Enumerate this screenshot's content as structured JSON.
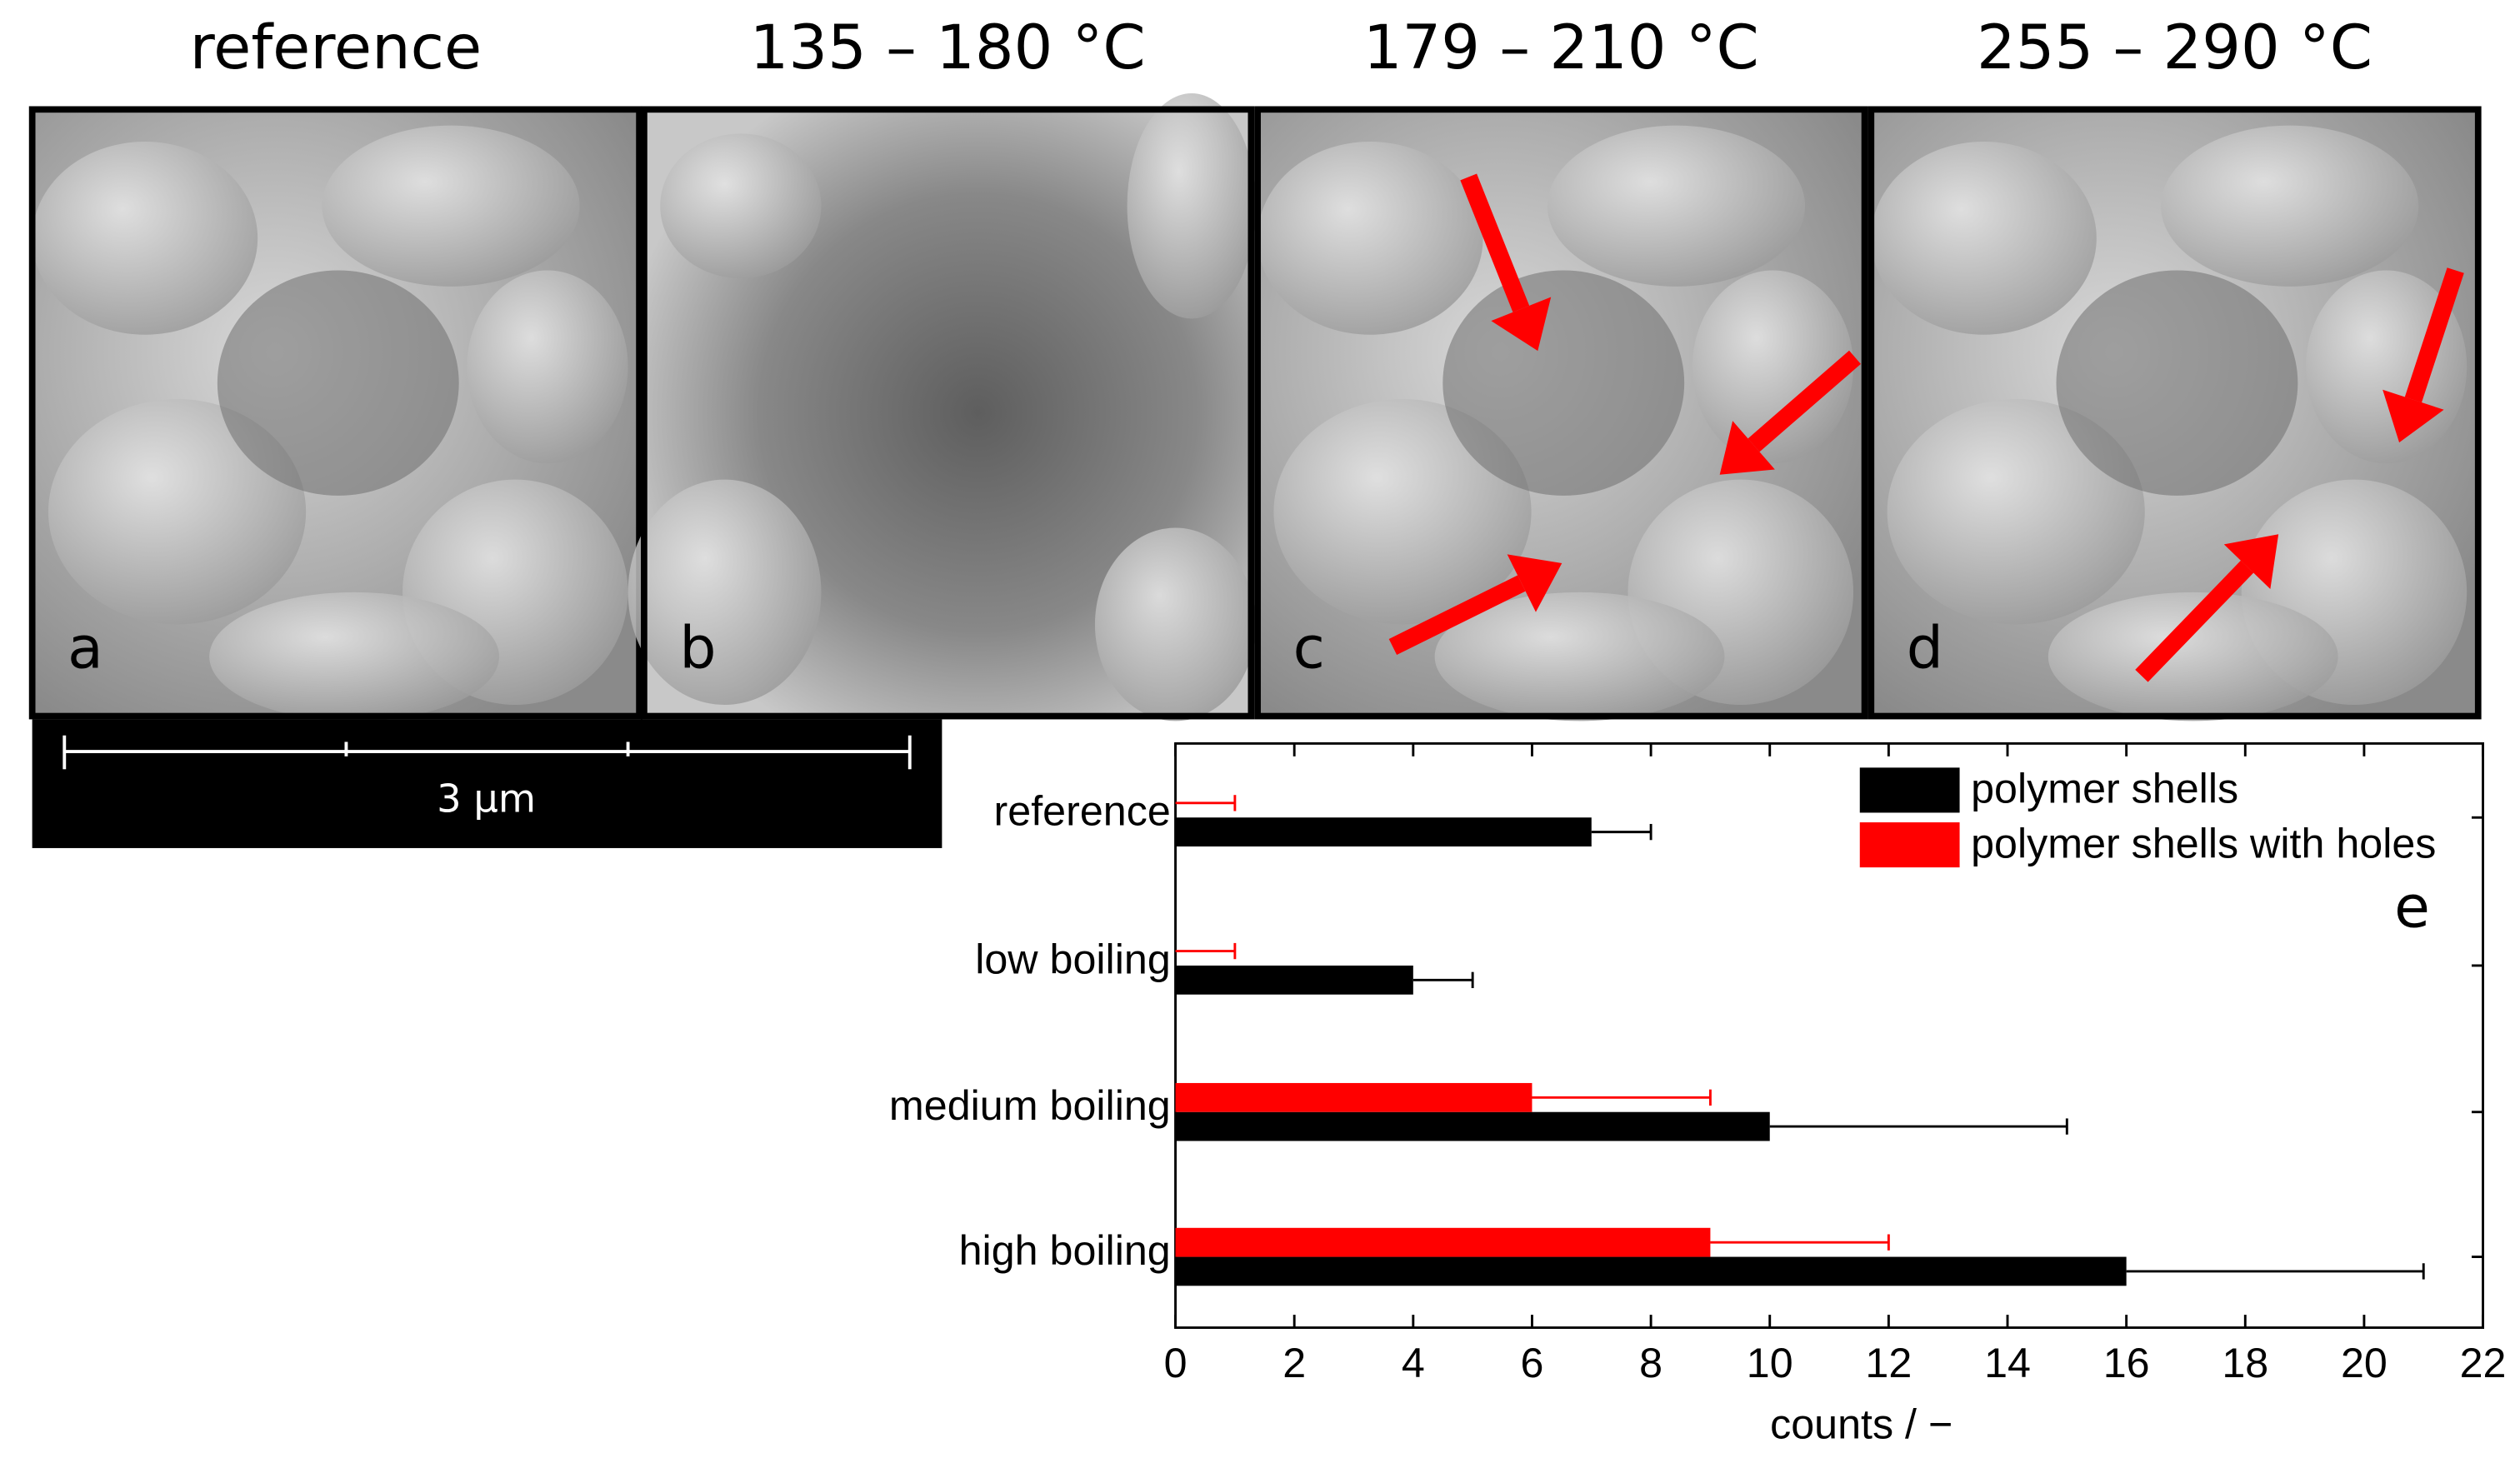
{
  "panels": [
    {
      "title": "reference",
      "letter": "a"
    },
    {
      "title": "135 – 180 °C",
      "letter": "b"
    },
    {
      "title": "179 – 210 °C",
      "letter": "c"
    },
    {
      "title": "255 – 290 °C",
      "letter": "d"
    }
  ],
  "scale_bar": "3 µm",
  "chart_data": {
    "type": "bar",
    "orientation": "horizontal",
    "panel_letter": "e",
    "categories": [
      "reference",
      "low boiling",
      "medium boiling",
      "high boiling"
    ],
    "series": [
      {
        "name": "polymer shells",
        "color": "#000000",
        "values": [
          7,
          4,
          10,
          16
        ],
        "errors": [
          1,
          1,
          5,
          5
        ]
      },
      {
        "name": "polymer shells with holes",
        "color": "#ff0000",
        "values": [
          0,
          0,
          6,
          9
        ],
        "errors": [
          1,
          1,
          3,
          3
        ]
      }
    ],
    "xlabel": "counts / −",
    "xlim": [
      0,
      22
    ],
    "xticks": [
      0,
      2,
      4,
      6,
      8,
      10,
      12,
      14,
      16,
      18,
      20,
      22
    ],
    "legend": "upper right"
  }
}
